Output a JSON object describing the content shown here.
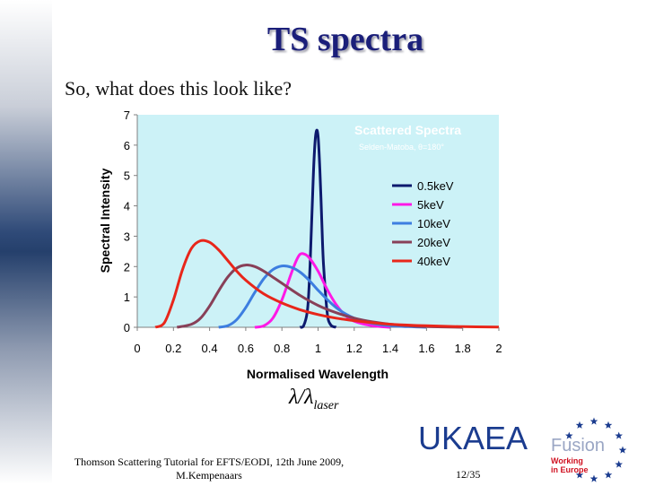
{
  "slide": {
    "title": "TS spectra",
    "subtitle": "So, what does this look like?",
    "lambda_main": "λ/λ",
    "lambda_sub": "laser",
    "footer_line1": "Thomson Scattering Tutorial for EFTS/EODI, 12th June 2009,",
    "footer_line2": "M.Kempenaars",
    "page": "12/35",
    "logo_main": "UKAEA",
    "logo_fusion": "Fusion",
    "logo_working1": "Working",
    "logo_working2": "in Europe"
  },
  "chart_data": {
    "type": "line",
    "title": "Scattered Spectra",
    "subtitle": "Selden-Matoba, θ=180°",
    "xlabel": "Normalised Wavelength",
    "ylabel": "Spectral Intensity",
    "xlim": [
      0,
      2
    ],
    "ylim": [
      0,
      7
    ],
    "xticks": [
      "0",
      "0.2",
      "0.4",
      "0.6",
      "0.8",
      "1",
      "1.2",
      "1.4",
      "1.6",
      "1.8",
      "2"
    ],
    "yticks": [
      "0",
      "1",
      "2",
      "3",
      "4",
      "5",
      "6",
      "7"
    ],
    "legend_position": "right",
    "colors": {
      "plot_bg": "#ccf2f7",
      "axis": "#808080"
    },
    "series": [
      {
        "name": "0.5keV",
        "color": "#0d1a6e",
        "x": [
          0.9,
          0.92,
          0.94,
          0.95,
          0.96,
          0.97,
          0.98,
          0.99,
          1.0,
          1.01,
          1.02,
          1.03,
          1.05,
          1.07,
          1.1
        ],
        "y": [
          0,
          0.05,
          0.5,
          1.3,
          2.7,
          4.4,
          5.8,
          6.45,
          6.3,
          5.2,
          3.6,
          2.1,
          0.5,
          0.08,
          0
        ]
      },
      {
        "name": "5keV",
        "color": "#ff19e6",
        "x": [
          0.65,
          0.7,
          0.75,
          0.8,
          0.85,
          0.88,
          0.9,
          0.92,
          0.95,
          1.0,
          1.05,
          1.1,
          1.15,
          1.2,
          1.3,
          1.4
        ],
        "y": [
          0,
          0.05,
          0.3,
          0.9,
          1.75,
          2.2,
          2.4,
          2.42,
          2.3,
          1.85,
          1.25,
          0.75,
          0.4,
          0.2,
          0.05,
          0
        ]
      },
      {
        "name": "10keV",
        "color": "#3d7ee0",
        "x": [
          0.45,
          0.5,
          0.55,
          0.6,
          0.65,
          0.7,
          0.75,
          0.8,
          0.85,
          0.9,
          0.95,
          1.0,
          1.05,
          1.1,
          1.15,
          1.2,
          1.3,
          1.4,
          1.5,
          1.6
        ],
        "y": [
          0,
          0.05,
          0.25,
          0.65,
          1.15,
          1.6,
          1.9,
          2.02,
          1.98,
          1.82,
          1.55,
          1.22,
          0.92,
          0.65,
          0.45,
          0.3,
          0.13,
          0.05,
          0.02,
          0
        ]
      },
      {
        "name": "20keV",
        "color": "#884058",
        "x": [
          0.22,
          0.3,
          0.35,
          0.4,
          0.45,
          0.5,
          0.55,
          0.6,
          0.65,
          0.7,
          0.75,
          0.8,
          0.9,
          1.0,
          1.1,
          1.2,
          1.3,
          1.4,
          1.5,
          1.6,
          1.8
        ],
        "y": [
          0,
          0.1,
          0.3,
          0.7,
          1.2,
          1.65,
          1.95,
          2.05,
          2.0,
          1.85,
          1.65,
          1.45,
          1.05,
          0.72,
          0.48,
          0.3,
          0.18,
          0.1,
          0.05,
          0.02,
          0
        ]
      },
      {
        "name": "40keV",
        "color": "#e8261a",
        "x": [
          0.1,
          0.15,
          0.2,
          0.25,
          0.3,
          0.35,
          0.4,
          0.45,
          0.5,
          0.55,
          0.6,
          0.7,
          0.8,
          0.9,
          1.0,
          1.1,
          1.2,
          1.3,
          1.4,
          1.6,
          1.8,
          2.0
        ],
        "y": [
          0,
          0.15,
          0.9,
          1.9,
          2.6,
          2.85,
          2.8,
          2.55,
          2.2,
          1.85,
          1.55,
          1.1,
          0.8,
          0.58,
          0.42,
          0.3,
          0.22,
          0.15,
          0.1,
          0.05,
          0.02,
          0.01
        ]
      }
    ]
  }
}
